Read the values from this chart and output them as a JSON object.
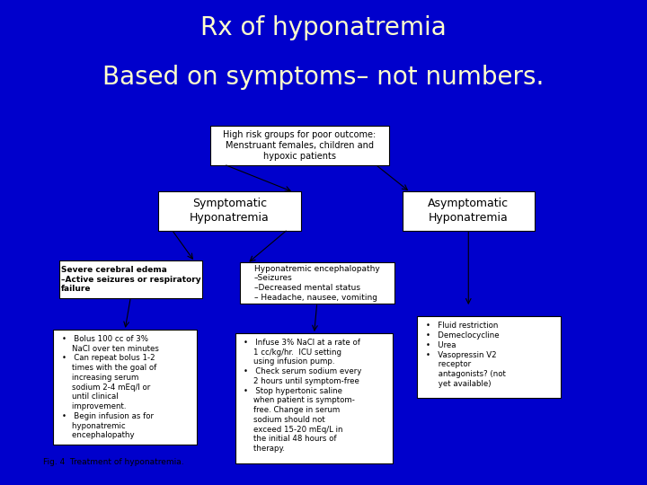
{
  "title_line1": "Rx of hyponatremia",
  "title_line2": "Based on symptoms– not numbers.",
  "title_color": "#FFFFCC",
  "bg_color": "#0000CC",
  "title_fontsize": 20,
  "fig_caption": "Fig. 4  Treatment of hyponatremia.",
  "chart_bg": "white"
}
